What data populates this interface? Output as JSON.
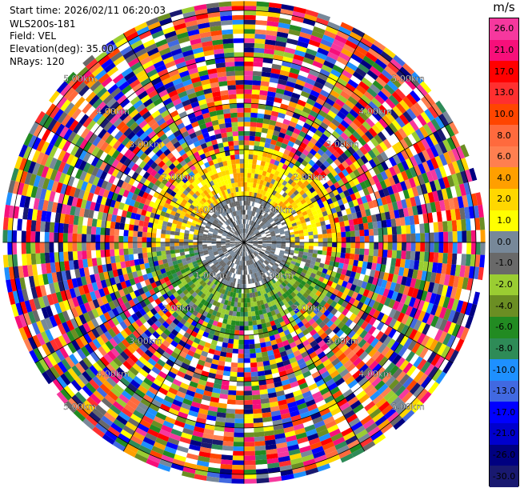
{
  "info": {
    "start_time": "Start time: 2026/02/11 06:20:03",
    "station": "WLS200s-181",
    "field": "Field: VEL",
    "elevation": "Elevation(deg): 35.00",
    "nrays": "NRays: 120"
  },
  "colorbar": {
    "unit": "m/s",
    "levels": [
      {
        "label": "26.0",
        "color": "#f6389e"
      },
      {
        "label": "21.0",
        "color": "#f70f7a"
      },
      {
        "label": "17.0",
        "color": "#ff0000"
      },
      {
        "label": "13.0",
        "color": "#ff2f2f"
      },
      {
        "label": "10.0",
        "color": "#ff4500"
      },
      {
        "label": "8.0",
        "color": "#ff6a3d"
      },
      {
        "label": "6.0",
        "color": "#ff7f50"
      },
      {
        "label": "4.0",
        "color": "#ff9f00"
      },
      {
        "label": "2.0",
        "color": "#ffd700"
      },
      {
        "label": "1.0",
        "color": "#ffff00"
      },
      {
        "label": "0.0",
        "color": "#778899"
      },
      {
        "label": "-1.0",
        "color": "#696969"
      },
      {
        "label": "-2.0",
        "color": "#9acd32"
      },
      {
        "label": "-4.0",
        "color": "#6b8e23"
      },
      {
        "label": "-6.0",
        "color": "#228b22"
      },
      {
        "label": "-8.0",
        "color": "#2e8b57"
      },
      {
        "label": "-10.0",
        "color": "#1e90ff"
      },
      {
        "label": "-13.0",
        "color": "#4169e1"
      },
      {
        "label": "-17.0",
        "color": "#0000ff"
      },
      {
        "label": "-21.0",
        "color": "#0000cd"
      },
      {
        "label": "-26.0",
        "color": "#000080"
      },
      {
        "label": "-30.0",
        "color": "#191970"
      }
    ]
  },
  "chart_data": {
    "type": "heatmap",
    "projection": "polar-ppi",
    "field": "VEL",
    "unit": "m/s",
    "rays": 120,
    "elevation_deg": 35.0,
    "range_rings": [
      {
        "range_km": 1.0,
        "label": "1.00km"
      },
      {
        "range_km": 2.0,
        "label": "2.00km"
      },
      {
        "range_km": 3.0,
        "label": "3.00km"
      },
      {
        "range_km": 4.0,
        "label": "4.00km"
      },
      {
        "range_km": 5.0,
        "label": "5.00km"
      }
    ],
    "max_range_km": 5.2,
    "azimuth_lines_deg": [
      0,
      30,
      60,
      90,
      120,
      150,
      180,
      210,
      240,
      270,
      300,
      330
    ],
    "velocity_zones": [
      {
        "range_km": [
          0.0,
          1.0
        ],
        "azimuth": "all",
        "velocity_mps": [
          -1.0,
          0.0
        ]
      },
      {
        "range_km": [
          1.0,
          1.8
        ],
        "azimuth": "north",
        "velocity_mps": [
          1.0,
          4.0
        ]
      },
      {
        "range_km": [
          1.0,
          1.8
        ],
        "azimuth": "south",
        "velocity_mps": [
          -6.0,
          -2.0
        ]
      },
      {
        "range_km": [
          2.0,
          5.2
        ],
        "azimuth": "all",
        "velocity_mps": [
          -30.0,
          26.0
        ]
      }
    ]
  }
}
